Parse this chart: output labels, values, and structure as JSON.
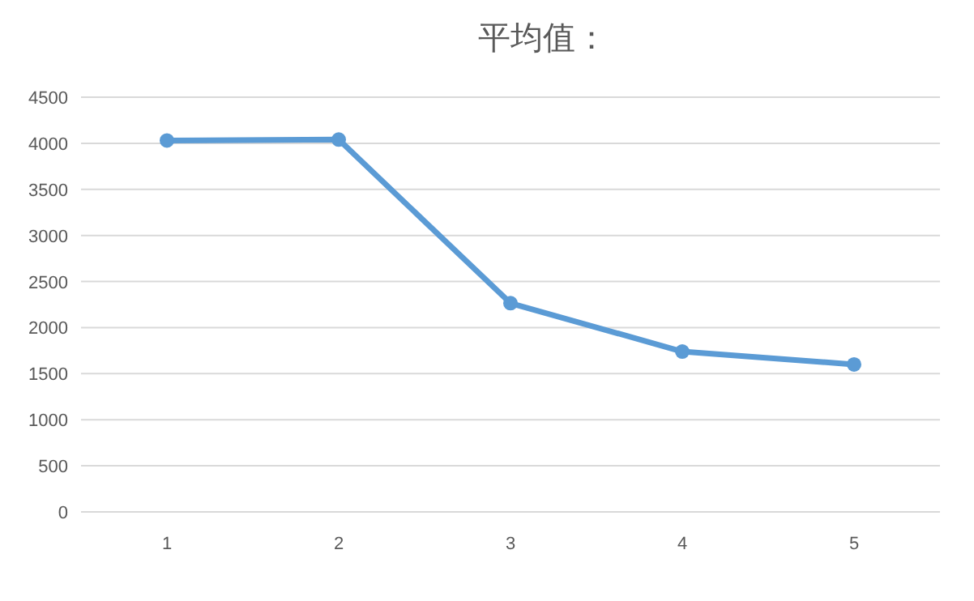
{
  "chart_data": {
    "type": "line",
    "title": "平均值：",
    "categories": [
      "1",
      "2",
      "3",
      "4",
      "5"
    ],
    "series": [
      {
        "color": "#5b9bd5",
        "values": [
          4030,
          4040,
          2265,
          1740,
          1600
        ]
      }
    ],
    "ylim": [
      0,
      4500
    ],
    "yticks": [
      0,
      500,
      1000,
      1500,
      2000,
      2500,
      3000,
      3500,
      4000,
      4500
    ],
    "grid": "y",
    "marker": "circle"
  }
}
